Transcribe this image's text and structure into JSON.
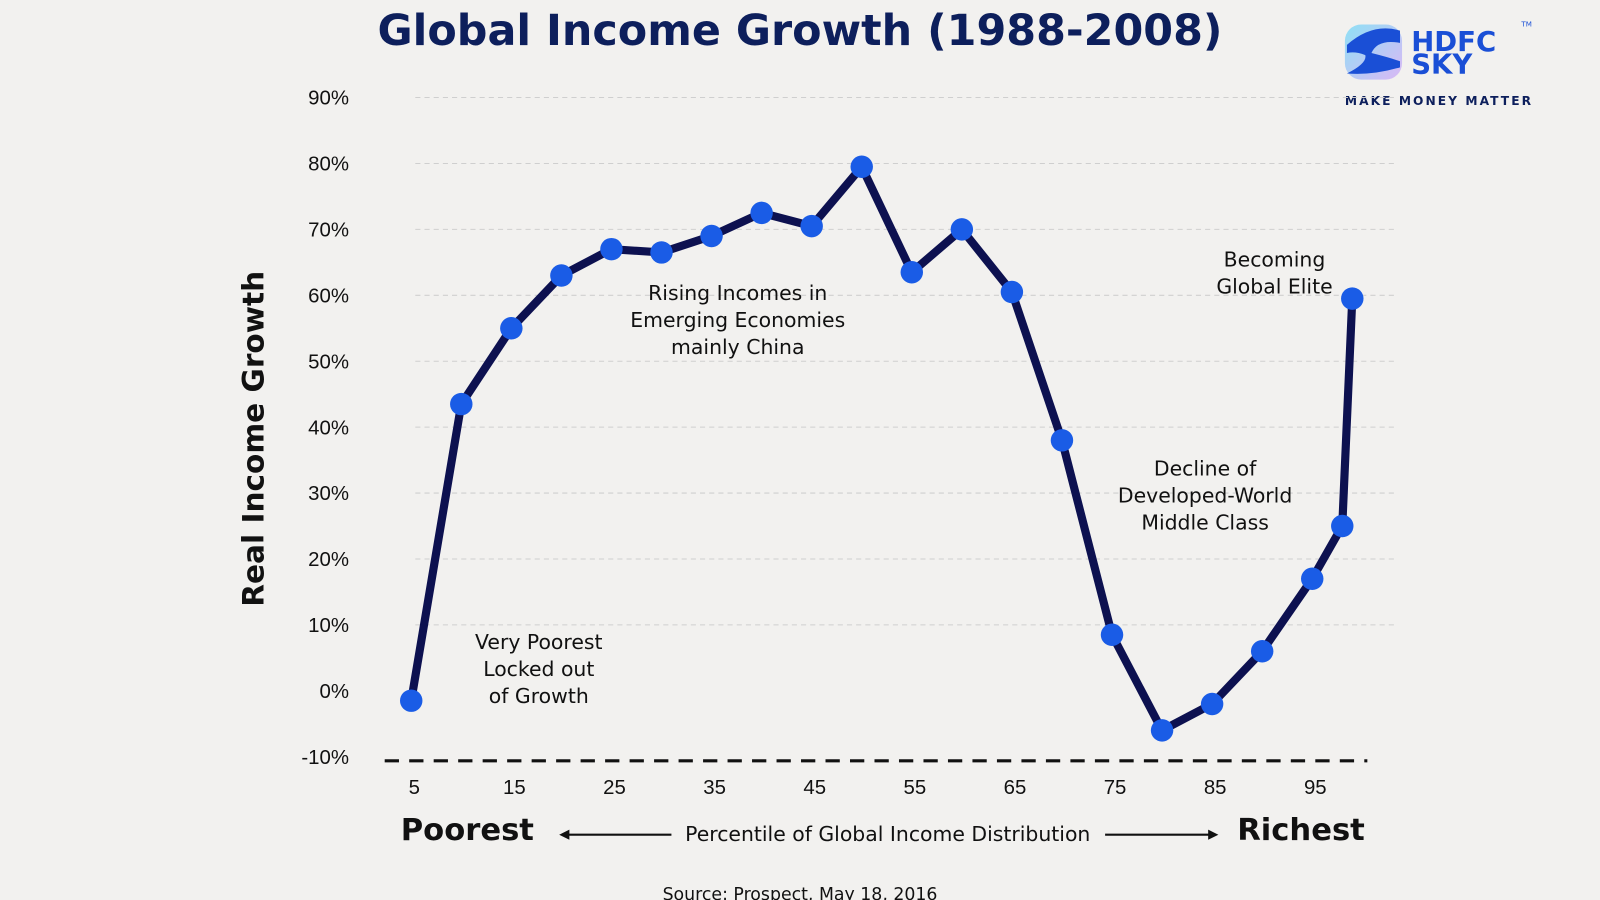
{
  "chart_data": {
    "type": "line",
    "title": "Global Income Growth (1988-2008)",
    "ylabel": "Real Income Growth",
    "xlabel": "Percentile of Global Income Distribution",
    "x_left_label": "Poorest",
    "x_right_label": "Richest",
    "ylim": [
      -10,
      90
    ],
    "yticks": [
      "90%",
      "80%",
      "70%",
      "60%",
      "50%",
      "40%",
      "30%",
      "20%",
      "10%",
      "0%",
      "-10%"
    ],
    "ytick_values": [
      90,
      80,
      70,
      60,
      50,
      40,
      30,
      20,
      10,
      0,
      -10
    ],
    "xticks": [
      "5",
      "15",
      "25",
      "35",
      "45",
      "55",
      "65",
      "75",
      "85",
      "95"
    ],
    "xtick_values": [
      5,
      15,
      25,
      35,
      45,
      55,
      65,
      75,
      85,
      95
    ],
    "grid": true,
    "x": [
      5,
      10,
      15,
      20,
      25,
      30,
      35,
      40,
      45,
      50,
      55,
      60,
      65,
      70,
      75,
      80,
      85,
      90,
      95,
      98,
      99
    ],
    "values": [
      -1.5,
      43.5,
      55,
      63,
      67,
      66.5,
      69,
      72.5,
      70.5,
      79.5,
      63.5,
      70,
      60.5,
      38,
      8.5,
      -6,
      -2,
      6,
      17,
      25,
      59.5
    ],
    "line_color": "#0d1150",
    "marker_color": "#1a5ce6",
    "annotations": [
      {
        "lines": [
          "Very Poorest",
          "Locked out",
          "of Growth"
        ]
      },
      {
        "lines": [
          "Rising Incomes in",
          "Emerging Economies",
          "mainly China"
        ]
      },
      {
        "lines": [
          "Decline of",
          "Developed-World",
          "Middle Class"
        ]
      },
      {
        "lines": [
          "Becoming",
          "Global Elite"
        ]
      }
    ],
    "source": "Source: Prospect, May 18, 2016"
  },
  "brand": {
    "name_line1": "HDFC",
    "name_line2": "SKY",
    "tagline": "MAKE MONEY MATTER",
    "tm": "TM",
    "color": "#1a4fd6"
  }
}
